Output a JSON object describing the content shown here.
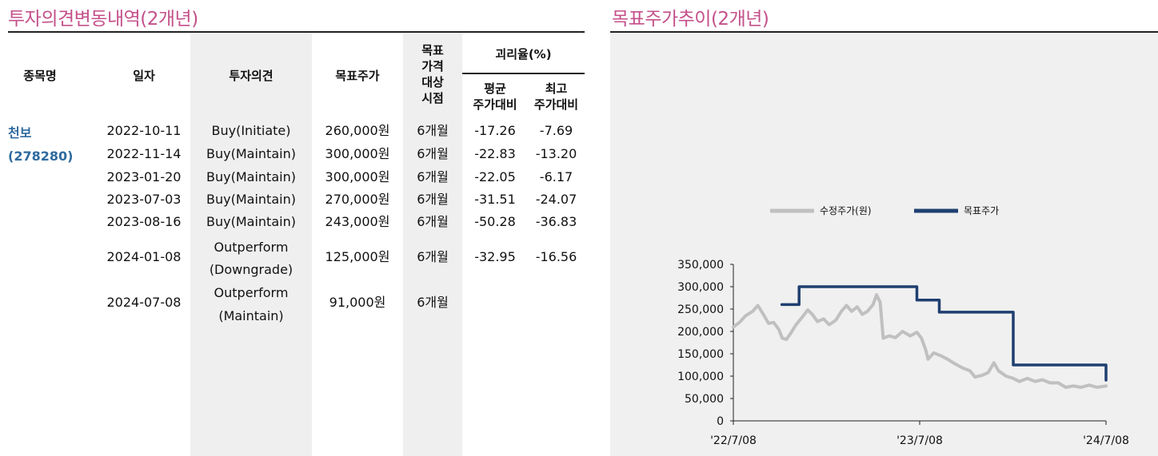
{
  "left_title": "투자의견변동내역(2개년)",
  "right_title": "목표주가추이(2개년)",
  "table": {
    "headers": {
      "stock_name": "종목명",
      "date": "일자",
      "opinion": "투자의견",
      "target_price": "목표주가",
      "target_period": [
        "목표",
        "가격",
        "대상",
        "시점"
      ],
      "gap_group": "괴리율(%)",
      "avg_gap": [
        "평균",
        "주가대비"
      ],
      "max_gap": [
        "최고",
        "주가대비"
      ]
    },
    "company_name": "천보",
    "company_code": "(278280)",
    "rows": [
      {
        "date": "2022-10-11",
        "opinion": [
          "Buy(Initiate)"
        ],
        "target": "260,000원",
        "period": "6개월",
        "avg": "-17.26",
        "max": "-7.69"
      },
      {
        "date": "2022-11-14",
        "opinion": [
          "Buy(Maintain)"
        ],
        "target": "300,000원",
        "period": "6개월",
        "avg": "-22.83",
        "max": "-13.20"
      },
      {
        "date": "2023-01-20",
        "opinion": [
          "Buy(Maintain)"
        ],
        "target": "300,000원",
        "period": "6개월",
        "avg": "-22.05",
        "max": "-6.17"
      },
      {
        "date": "2023-07-03",
        "opinion": [
          "Buy(Maintain)"
        ],
        "target": "270,000원",
        "period": "6개월",
        "avg": "-31.51",
        "max": "-24.07"
      },
      {
        "date": "2023-08-16",
        "opinion": [
          "Buy(Maintain)"
        ],
        "target": "243,000원",
        "period": "6개월",
        "avg": "-50.28",
        "max": "-36.83"
      },
      {
        "date": "2024-01-08",
        "opinion": [
          "Outperform",
          "(Downgrade)"
        ],
        "target": "125,000원",
        "period": "6개월",
        "avg": "-32.95",
        "max": "-16.56"
      },
      {
        "date": "2024-07-08",
        "opinion": [
          "Outperform",
          "(Maintain)"
        ],
        "target": "91,000원",
        "period": "6개월",
        "avg": "",
        "max": ""
      }
    ]
  },
  "chart_data": {
    "type": "line",
    "x_ticks": [
      "'22/7/08",
      "'23/7/08",
      "'24/7/08"
    ],
    "x_range": [
      "2022-07-08",
      "2024-07-08"
    ],
    "y_ticks": [
      "0",
      "50,000",
      "100,000",
      "150,000",
      "200,000",
      "250,000",
      "300,000",
      "350,000"
    ],
    "ylim": [
      0,
      350000
    ],
    "legend_position": "top-center",
    "series": [
      {
        "name": "수정주가(원)",
        "color": "#c0c0c0",
        "points": [
          [
            "2022-07-08",
            210000
          ],
          [
            "2022-07-20",
            220000
          ],
          [
            "2022-08-01",
            235000
          ],
          [
            "2022-08-15",
            245000
          ],
          [
            "2022-08-25",
            258000
          ],
          [
            "2022-09-05",
            238000
          ],
          [
            "2022-09-15",
            218000
          ],
          [
            "2022-09-25",
            220000
          ],
          [
            "2022-10-05",
            205000
          ],
          [
            "2022-10-12",
            185000
          ],
          [
            "2022-10-20",
            182000
          ],
          [
            "2022-10-28",
            195000
          ],
          [
            "2022-11-08",
            215000
          ],
          [
            "2022-11-20",
            232000
          ],
          [
            "2022-12-01",
            248000
          ],
          [
            "2022-12-10",
            238000
          ],
          [
            "2022-12-20",
            222000
          ],
          [
            "2023-01-01",
            228000
          ],
          [
            "2023-01-12",
            215000
          ],
          [
            "2023-01-25",
            225000
          ],
          [
            "2023-02-05",
            245000
          ],
          [
            "2023-02-15",
            258000
          ],
          [
            "2023-02-25",
            245000
          ],
          [
            "2023-03-08",
            255000
          ],
          [
            "2023-03-18",
            238000
          ],
          [
            "2023-03-28",
            245000
          ],
          [
            "2023-04-08",
            260000
          ],
          [
            "2023-04-15",
            282000
          ],
          [
            "2023-04-22",
            265000
          ],
          [
            "2023-04-28",
            185000
          ],
          [
            "2023-05-10",
            190000
          ],
          [
            "2023-05-22",
            186000
          ],
          [
            "2023-06-05",
            200000
          ],
          [
            "2023-06-20",
            190000
          ],
          [
            "2023-07-03",
            198000
          ],
          [
            "2023-07-12",
            185000
          ],
          [
            "2023-07-20",
            160000
          ],
          [
            "2023-07-25",
            138000
          ],
          [
            "2023-08-05",
            152000
          ],
          [
            "2023-08-20",
            145000
          ],
          [
            "2023-09-01",
            138000
          ],
          [
            "2023-09-15",
            128000
          ],
          [
            "2023-10-01",
            118000
          ],
          [
            "2023-10-15",
            112000
          ],
          [
            "2023-10-25",
            98000
          ],
          [
            "2023-11-08",
            102000
          ],
          [
            "2023-11-20",
            108000
          ],
          [
            "2023-12-01",
            130000
          ],
          [
            "2023-12-10",
            112000
          ],
          [
            "2023-12-25",
            100000
          ],
          [
            "2024-01-08",
            95000
          ],
          [
            "2024-01-20",
            88000
          ],
          [
            "2024-02-05",
            95000
          ],
          [
            "2024-02-20",
            88000
          ],
          [
            "2024-03-05",
            92000
          ],
          [
            "2024-03-20",
            85000
          ],
          [
            "2024-04-05",
            85000
          ],
          [
            "2024-04-20",
            75000
          ],
          [
            "2024-05-05",
            78000
          ],
          [
            "2024-05-20",
            75000
          ],
          [
            "2024-06-05",
            80000
          ],
          [
            "2024-06-20",
            75000
          ],
          [
            "2024-07-08",
            78000
          ]
        ]
      },
      {
        "name": "목표주가",
        "color": "#1f3f70",
        "points": [
          [
            "2022-10-11",
            260000
          ],
          [
            "2022-11-14",
            260000
          ],
          [
            "2022-11-14",
            300000
          ],
          [
            "2023-07-03",
            300000
          ],
          [
            "2023-07-03",
            270000
          ],
          [
            "2023-08-16",
            270000
          ],
          [
            "2023-08-16",
            243000
          ],
          [
            "2024-01-08",
            243000
          ],
          [
            "2024-01-08",
            125000
          ],
          [
            "2024-07-08",
            125000
          ],
          [
            "2024-07-08",
            91000
          ]
        ]
      }
    ]
  }
}
